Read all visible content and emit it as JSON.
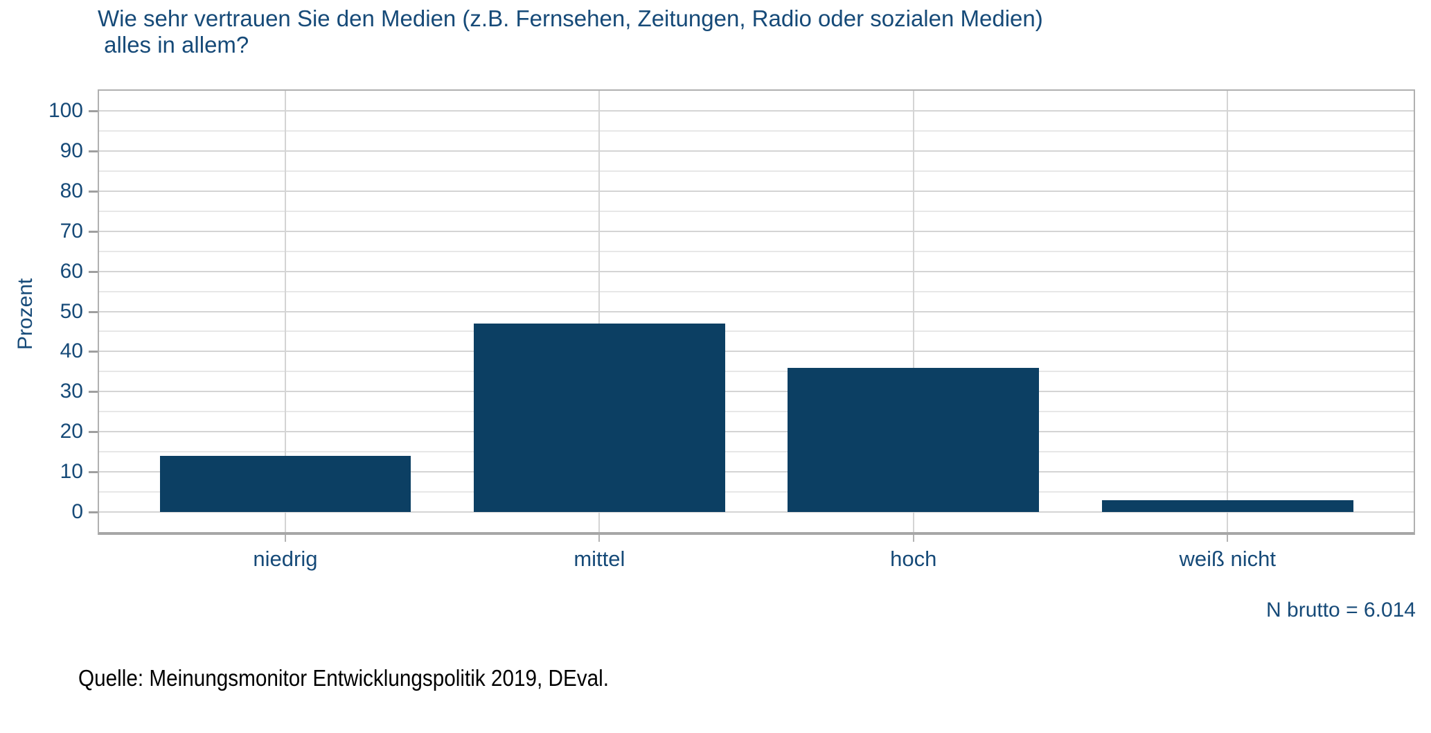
{
  "header": {
    "title_line1": "Wie sehr vertrauen Sie den Medien (z.B. Fernsehen, Zeitungen, Radio oder sozialen Medien)",
    "title_line2": " alles in allem?"
  },
  "chart_data": {
    "type": "bar",
    "title": "Wie sehr vertrauen Sie den Medien (z.B. Fernsehen, Zeitungen, Radio oder sozialen Medien) alles in allem?",
    "categories": [
      "niedrig",
      "mittel",
      "hoch",
      "weiß nicht"
    ],
    "values": [
      14,
      47,
      36,
      3
    ],
    "xlabel": "",
    "ylabel": "Prozent",
    "ylim": [
      -5,
      105
    ],
    "yticks": [
      0,
      10,
      20,
      30,
      40,
      50,
      60,
      70,
      80,
      90,
      100
    ],
    "minor_gridline_step": 5,
    "grid": "on",
    "legend_position": "none",
    "bar_color": "#0c3f63"
  },
  "annotations": {
    "n_note": "N brutto = 6.014",
    "source": "Quelle: Meinungsmonitor Entwicklungspolitik 2019, DEval."
  },
  "colors": {
    "text_blue": "#164a78",
    "bar": "#0c3f63",
    "grid_major": "#d4d4d4",
    "grid_minor": "#e7e7e7",
    "panel_border": "#b0b0b0",
    "axis_line": "#a6a6a6",
    "source_text": "#000000"
  }
}
